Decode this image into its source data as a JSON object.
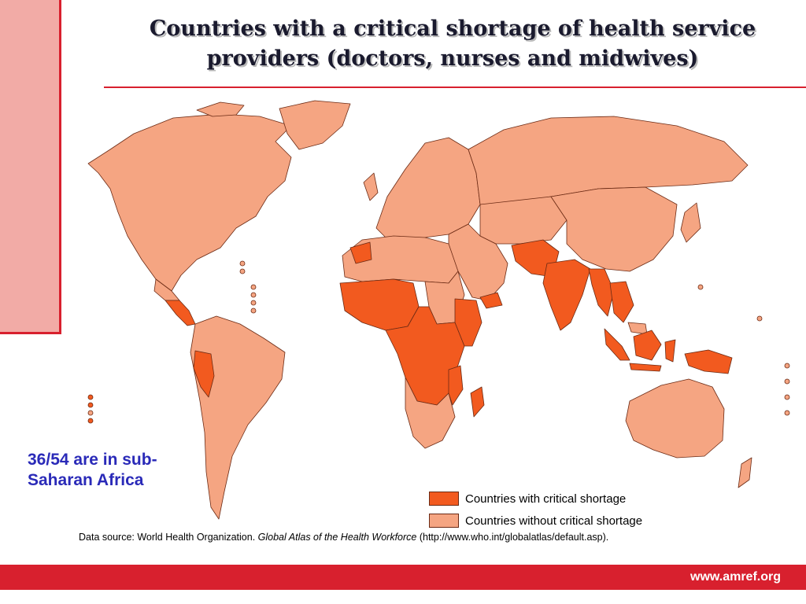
{
  "title_line1": "Countries with a critical shortage of health service",
  "title_line2": "providers (doctors, nurses and midwives)",
  "callout": "36/54 are in sub-Saharan Africa",
  "legend": [
    {
      "label": "Countries with critical shortage",
      "color": "#f25a1f"
    },
    {
      "label": "Countries without critical shortage",
      "color": "#f5a582"
    }
  ],
  "source": {
    "prefix": "Data source: World Health Organization. ",
    "italic": "Global Atlas of the Health Workforce",
    "suffix": " (http://www.who.int/globalatlas/default.asp)."
  },
  "footer_url": "www.amref.org",
  "colors": {
    "critical": "#f25a1f",
    "non_critical": "#f5a582",
    "border": "#6b2a14",
    "accent": "#d8202e",
    "callout": "#2a2ab8"
  },
  "critical_regions": [
    "Central America",
    "Peru",
    "West Africa",
    "Central Africa",
    "East Africa",
    "Southern Africa (partial)",
    "South Asia",
    "Southeast Asia",
    "Indonesia",
    "Papua New Guinea"
  ]
}
